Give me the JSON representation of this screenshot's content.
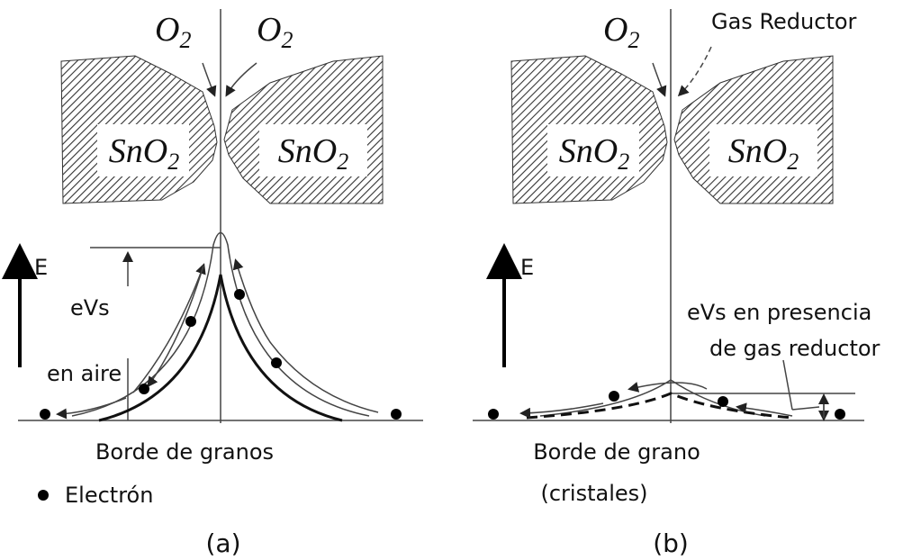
{
  "panel_a": {
    "o2_left": {
      "base": "O",
      "sub": "2"
    },
    "o2_right": {
      "base": "O",
      "sub": "2"
    },
    "grain_left": {
      "base": "SnO",
      "sub": "2"
    },
    "grain_right": {
      "base": "SnO",
      "sub": "2"
    },
    "axis_label": "E",
    "barrier_label": "eVs",
    "condition_label": "en aire",
    "boundary_label": "Borde de granos",
    "legend_label": "Electrón",
    "caption": "(a)"
  },
  "panel_b": {
    "o2_label": {
      "base": "O",
      "sub": "2"
    },
    "gas_label": "Gas Reductor",
    "grain_left": {
      "base": "SnO",
      "sub": "2"
    },
    "grain_right": {
      "base": "SnO",
      "sub": "2"
    },
    "axis_label": "E",
    "barrier_label_line1": "eVs en presencia",
    "barrier_label_line2": "de gas reductor",
    "boundary_label_line1": "Borde de grano",
    "boundary_label_line2": "(cristales)",
    "caption": "(b)"
  }
}
